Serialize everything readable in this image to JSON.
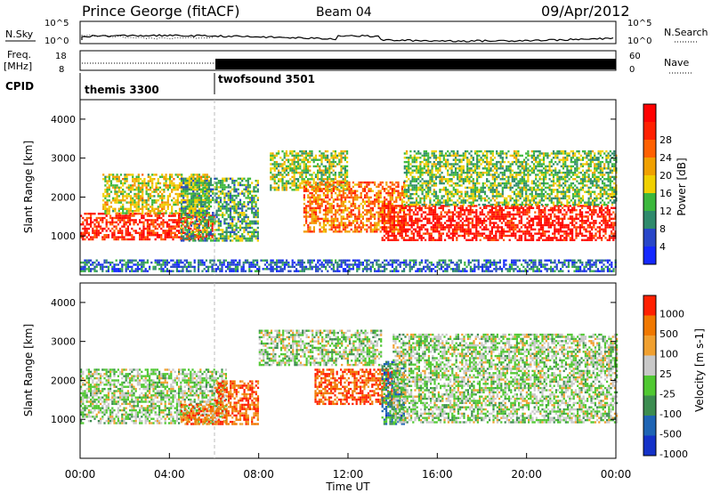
{
  "header": {
    "station": "Prince George (fitACF)",
    "beam": "Beam 04",
    "date": "09/Apr/2012"
  },
  "chart_data": [
    {
      "type": "line",
      "name": "noise-panel",
      "left_label": "N.Sky",
      "right_label": "N.Search",
      "left_ticks": [
        "10^5",
        "10^0"
      ],
      "right_ticks": [
        "10^5",
        "10^0"
      ]
    },
    {
      "type": "line",
      "name": "freq-panel",
      "left_label": "Freq.",
      "left_unit": "[MHz]",
      "right_label": "Nave",
      "left_ticks": [
        "18",
        "8"
      ],
      "right_ticks": [
        "60",
        "0"
      ]
    },
    {
      "type": "table",
      "name": "cpid-panel",
      "label": "CPID",
      "programs": [
        {
          "name": "themis 3300",
          "start_hour": 0,
          "end_hour": 6
        },
        {
          "name": "twofsound 3501",
          "start_hour": 6,
          "end_hour": 24
        }
      ]
    },
    {
      "type": "heatmap",
      "name": "power-panel",
      "ylabel": "Slant Range [km]",
      "yticks": [
        "1000",
        "2000",
        "3000",
        "4000"
      ],
      "ylim": [
        0,
        4500
      ],
      "xlim": [
        0,
        24
      ],
      "colorbar_label": "Power [dB]",
      "colorbar_ticks": [
        "4",
        "8",
        "12",
        "16",
        "20",
        "24",
        "28"
      ],
      "colorbar_colors": [
        "#1428ff",
        "#2846c8",
        "#2f8a6c",
        "#3cb83c",
        "#f0d000",
        "#f0a000",
        "#ff6000",
        "#ff2000",
        "#ff0000"
      ],
      "data_regions": [
        {
          "t0": 0.0,
          "t1": 6.0,
          "r0": 900,
          "r1": 1600,
          "level": 0.85
        },
        {
          "t0": 1.0,
          "t1": 5.8,
          "r0": 1600,
          "r1": 2600,
          "level": 0.5
        },
        {
          "t0": 4.5,
          "t1": 8.0,
          "r0": 900,
          "r1": 2500,
          "level": 0.35
        },
        {
          "t0": 8.5,
          "t1": 12.0,
          "r0": 2200,
          "r1": 3200,
          "level": 0.45
        },
        {
          "t0": 10.0,
          "t1": 14.5,
          "r0": 1100,
          "r1": 2400,
          "level": 0.7
        },
        {
          "t0": 13.5,
          "t1": 24.0,
          "r0": 900,
          "r1": 1800,
          "level": 0.9
        },
        {
          "t0": 14.5,
          "t1": 24.0,
          "r0": 1800,
          "r1": 3200,
          "level": 0.4
        },
        {
          "t0": 0.0,
          "t1": 24.0,
          "r0": 100,
          "r1": 400,
          "level": 0.2
        }
      ]
    },
    {
      "type": "heatmap",
      "name": "velocity-panel",
      "ylabel": "Slant Range [km]",
      "yticks": [
        "1000",
        "2000",
        "3000",
        "4000"
      ],
      "ylim": [
        0,
        4500
      ],
      "xlim": [
        0,
        24
      ],
      "xlabel": "Time UT",
      "xticks": [
        "00:00",
        "04:00",
        "08:00",
        "12:00",
        "16:00",
        "20:00",
        "00:00"
      ],
      "colorbar_label": "Velocity [m s-1]",
      "colorbar_ticks": [
        "1000",
        "500",
        "100",
        "25",
        "-25",
        "-100",
        "-500",
        "-1000"
      ],
      "colorbar_colors": [
        "#1432c8",
        "#1e64b4",
        "#3c8c50",
        "#50c832",
        "#c8c8c8",
        "#f0a030",
        "#f07800",
        "#ff2000"
      ],
      "data_regions": [
        {
          "t0": 0.0,
          "t1": 6.5,
          "r0": 900,
          "r1": 2300,
          "level": 0.5
        },
        {
          "t0": 4.5,
          "t1": 8.0,
          "r0": 900,
          "r1": 1400,
          "level": 0.82
        },
        {
          "t0": 6.0,
          "t1": 8.0,
          "r0": 1400,
          "r1": 2000,
          "level": 0.85
        },
        {
          "t0": 8.0,
          "t1": 13.5,
          "r0": 2400,
          "r1": 3300,
          "level": 0.5
        },
        {
          "t0": 10.5,
          "t1": 14.0,
          "r0": 1400,
          "r1": 2300,
          "level": 0.88
        },
        {
          "t0": 13.5,
          "t1": 14.5,
          "r0": 900,
          "r1": 2500,
          "level": 0.28
        },
        {
          "t0": 14.0,
          "t1": 24.0,
          "r0": 900,
          "r1": 3200,
          "level": 0.5
        }
      ]
    }
  ]
}
